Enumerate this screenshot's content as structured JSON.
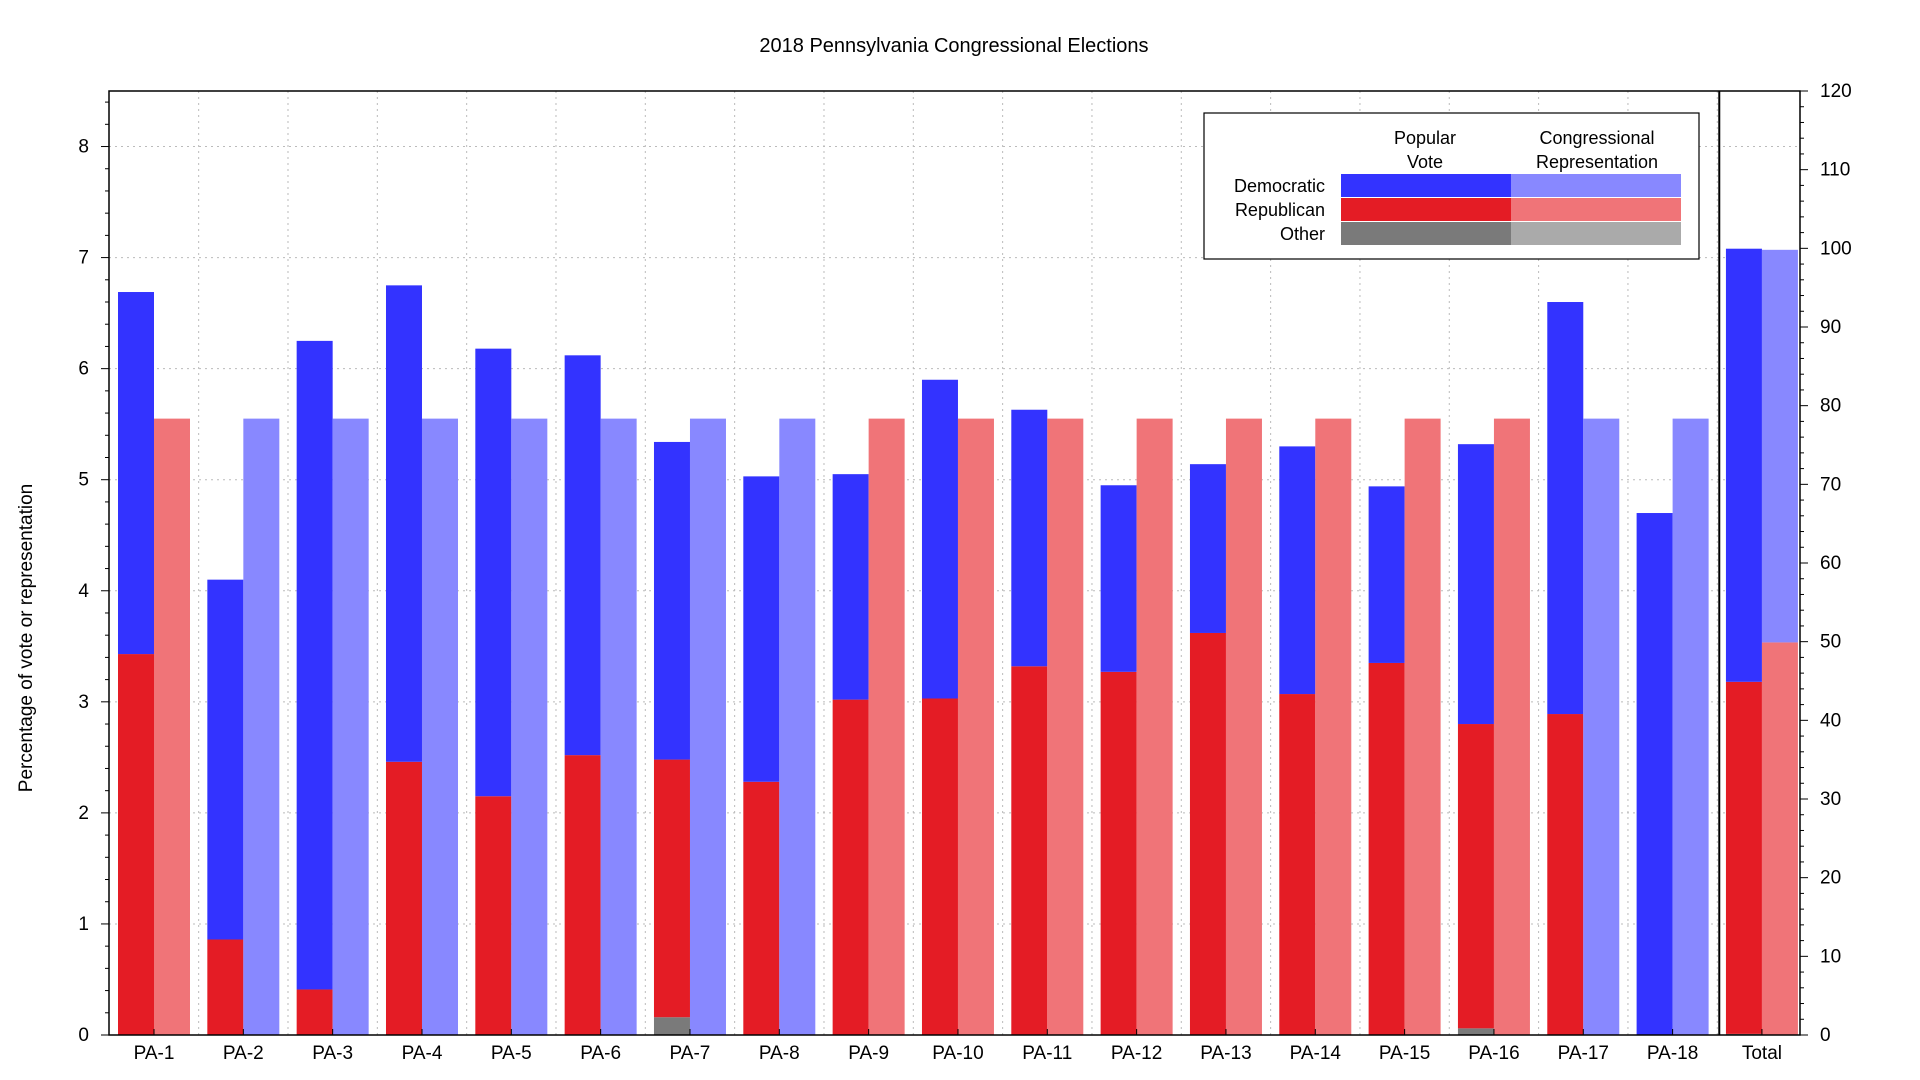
{
  "chart_data": {
    "type": "bar",
    "title": "2018 Pennsylvania Congressional Elections",
    "ylabel": "Percentage of vote or representation",
    "ylim": [
      0,
      8.5
    ],
    "yticks": [
      0,
      1,
      2,
      3,
      4,
      5,
      6,
      7,
      8
    ],
    "y2lim": [
      0,
      120
    ],
    "y2ticks": [
      0,
      10,
      20,
      30,
      40,
      50,
      60,
      70,
      80,
      90,
      100,
      110,
      120
    ],
    "grid": true,
    "legend_position": "top-right",
    "categories": [
      "PA-1",
      "PA-2",
      "PA-3",
      "PA-4",
      "PA-5",
      "PA-6",
      "PA-7",
      "PA-8",
      "PA-9",
      "PA-10",
      "PA-11",
      "PA-12",
      "PA-13",
      "PA-14",
      "PA-15",
      "PA-16",
      "PA-17",
      "PA-18",
      "Total"
    ],
    "popular_vote": {
      "other": [
        0,
        0,
        0,
        0,
        0,
        0,
        0.16,
        0,
        0,
        0,
        0,
        0,
        0,
        0,
        0,
        0.06,
        0,
        0,
        0.01
      ],
      "republican": [
        3.43,
        0.86,
        0.41,
        2.46,
        2.15,
        2.52,
        2.32,
        2.28,
        3.02,
        3.03,
        3.32,
        3.27,
        3.62,
        3.07,
        3.35,
        2.74,
        2.89,
        0,
        3.17
      ],
      "democratic": [
        3.26,
        3.24,
        5.84,
        4.29,
        4.03,
        3.6,
        2.86,
        2.75,
        2.03,
        2.87,
        2.31,
        1.68,
        1.52,
        2.23,
        1.59,
        2.52,
        3.71,
        4.7,
        3.9
      ]
    },
    "representation": {
      "party": [
        "Republican",
        "Democratic",
        "Democratic",
        "Democratic",
        "Democratic",
        "Democratic",
        "Democratic",
        "Democratic",
        "Republican",
        "Republican",
        "Republican",
        "Republican",
        "Republican",
        "Republican",
        "Republican",
        "Republican",
        "Democratic",
        "Democratic",
        "Both"
      ],
      "value": [
        5.55,
        5.55,
        5.55,
        5.55,
        5.55,
        5.55,
        5.55,
        5.55,
        5.55,
        5.55,
        5.55,
        5.55,
        5.55,
        5.55,
        5.55,
        5.55,
        5.55,
        5.55,
        7.07
      ],
      "total_split": {
        "republican": 3.535,
        "democratic": 3.535
      }
    },
    "legend": {
      "col_headers": [
        "Popular\nVote",
        "Congressional\nRepresentation"
      ],
      "rows": [
        "Democratic",
        "Republican",
        "Other"
      ]
    },
    "colors": {
      "dem_vote": "#3333ff",
      "rep_vote": "#e41c25",
      "other_vote": "#7a7a7a",
      "dem_rep": "#8888ff",
      "rep_rep": "#f07478",
      "other_rep": "#aaaaaa",
      "grid": "#bbbbbb"
    }
  }
}
